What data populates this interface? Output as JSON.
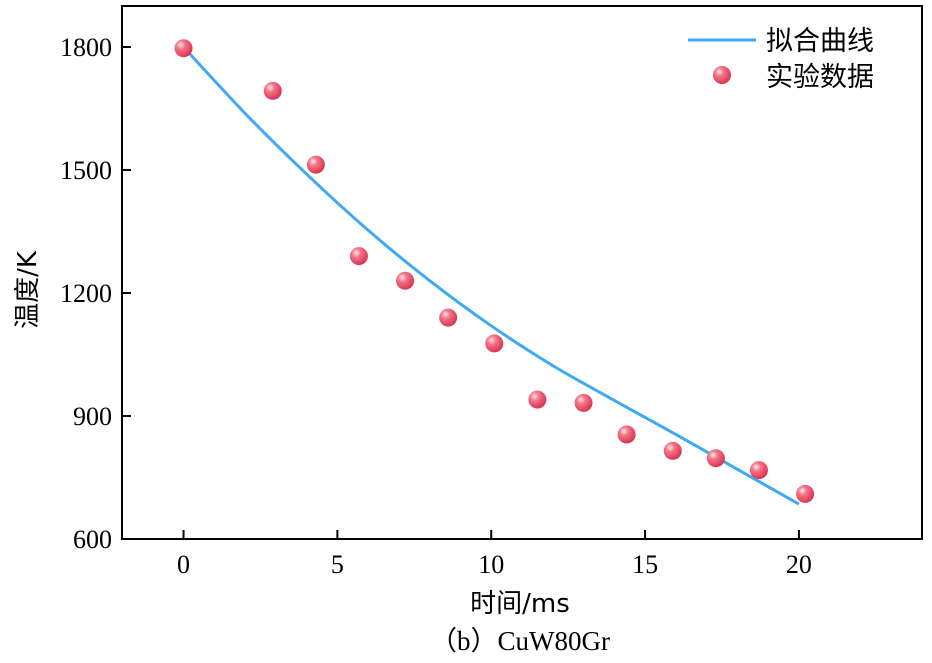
{
  "chart_data": {
    "type": "scatter",
    "xlabel": "时间/ms",
    "ylabel": "温度/K",
    "caption": "（b）CuW80Gr",
    "xlim": [
      -2,
      24
    ],
    "ylim": [
      600,
      1900
    ],
    "xticks": [
      0,
      5,
      10,
      15,
      20
    ],
    "yticks": [
      600,
      900,
      1200,
      1500,
      1800
    ],
    "legend_position": "top-right",
    "colors": {
      "fit": "#3fa9f5",
      "points": "#f0506e",
      "axis": "#000000"
    },
    "series": [
      {
        "name": "拟合曲线",
        "kind": "line",
        "x": [
          0,
          2,
          4,
          6,
          8,
          10,
          12,
          14,
          16,
          18,
          20
        ],
        "y": [
          1800,
          1638,
          1490,
          1353,
          1230,
          1120,
          1023,
          938,
          855,
          770,
          685
        ]
      },
      {
        "name": "实验数据",
        "kind": "scatter",
        "x": [
          0,
          2.9,
          4.3,
          5.7,
          7.2,
          8.6,
          10.1,
          11.5,
          13.0,
          14.4,
          15.9,
          17.3,
          18.7,
          20.2
        ],
        "y": [
          1797,
          1693,
          1513,
          1290,
          1230,
          1140,
          1077,
          940,
          932,
          855,
          815,
          797,
          768,
          710
        ]
      }
    ]
  }
}
